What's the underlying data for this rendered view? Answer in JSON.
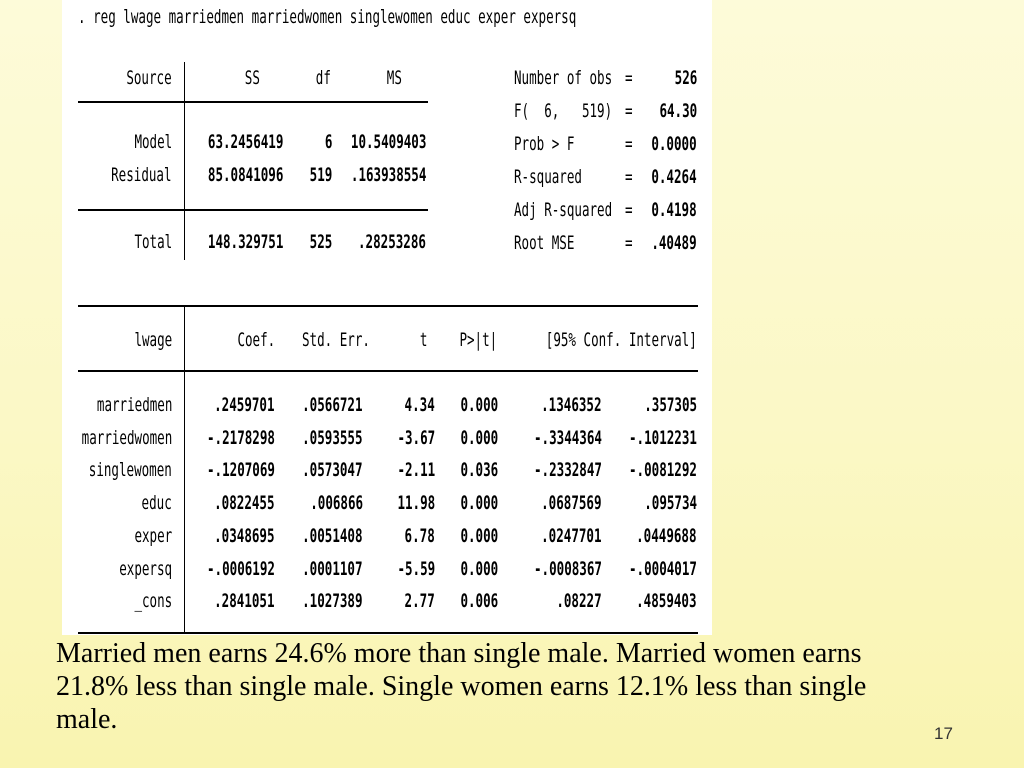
{
  "command": ". reg lwage marriedmen marriedwomen singlewomen educ exper expersq",
  "anova": {
    "headers": {
      "source": "Source",
      "ss": "SS",
      "df": "df",
      "ms": "MS"
    },
    "rows": [
      {
        "source": "Model",
        "ss": "63.2456419",
        "df": "6",
        "ms": "10.5409403"
      },
      {
        "source": "Residual",
        "ss": "85.0841096",
        "df": "519",
        "ms": ".163938554"
      }
    ],
    "total": {
      "source": "Total",
      "ss": "148.329751",
      "df": "525",
      "ms": ".28253286"
    }
  },
  "stats": [
    {
      "label": "Number of obs",
      "eq": "=",
      "value": "526"
    },
    {
      "label": "F(  6,   519)",
      "eq": "=",
      "value": "64.30"
    },
    {
      "label": "Prob > F",
      "eq": "=",
      "value": "0.0000"
    },
    {
      "label": "R-squared",
      "eq": "=",
      "value": "0.4264"
    },
    {
      "label": "Adj R-squared",
      "eq": "=",
      "value": "0.4198"
    },
    {
      "label": "Root MSE",
      "eq": "=",
      "value": ".40489"
    }
  ],
  "coef_table": {
    "headers": {
      "var": "lwage",
      "coef": "Coef.",
      "se": "Std. Err.",
      "t": "t",
      "p": "P>|t|",
      "ci": "[95% Conf. Interval]"
    },
    "rows": [
      {
        "var": "marriedmen",
        "coef": ".2459701",
        "se": ".0566721",
        "t": "4.34",
        "p": "0.000",
        "lo": ".1346352",
        "hi": ".357305"
      },
      {
        "var": "marriedwomen",
        "coef": "-.2178298",
        "se": ".0593555",
        "t": "-3.67",
        "p": "0.000",
        "lo": "-.3344364",
        "hi": "-.1012231"
      },
      {
        "var": "singlewomen",
        "coef": "-.1207069",
        "se": ".0573047",
        "t": "-2.11",
        "p": "0.036",
        "lo": "-.2332847",
        "hi": "-.0081292"
      },
      {
        "var": "educ",
        "coef": ".0822455",
        "se": ".006866",
        "t": "11.98",
        "p": "0.000",
        "lo": ".0687569",
        "hi": ".095734"
      },
      {
        "var": "exper",
        "coef": ".0348695",
        "se": ".0051408",
        "t": "6.78",
        "p": "0.000",
        "lo": ".0247701",
        "hi": ".0449688"
      },
      {
        "var": "expersq",
        "coef": "-.0006192",
        "se": ".0001107",
        "t": "-5.59",
        "p": "0.000",
        "lo": "-.0008367",
        "hi": "-.0004017"
      },
      {
        "var": "_cons",
        "coef": ".2841051",
        "se": ".1027389",
        "t": "2.77",
        "p": "0.006",
        "lo": ".08227",
        "hi": ".4859403"
      }
    ]
  },
  "caption": "Married men earns 24.6% more than single male. Married women earns 21.8% less than single male. Single women earns 12.1% less than single male.",
  "page_number": "17"
}
